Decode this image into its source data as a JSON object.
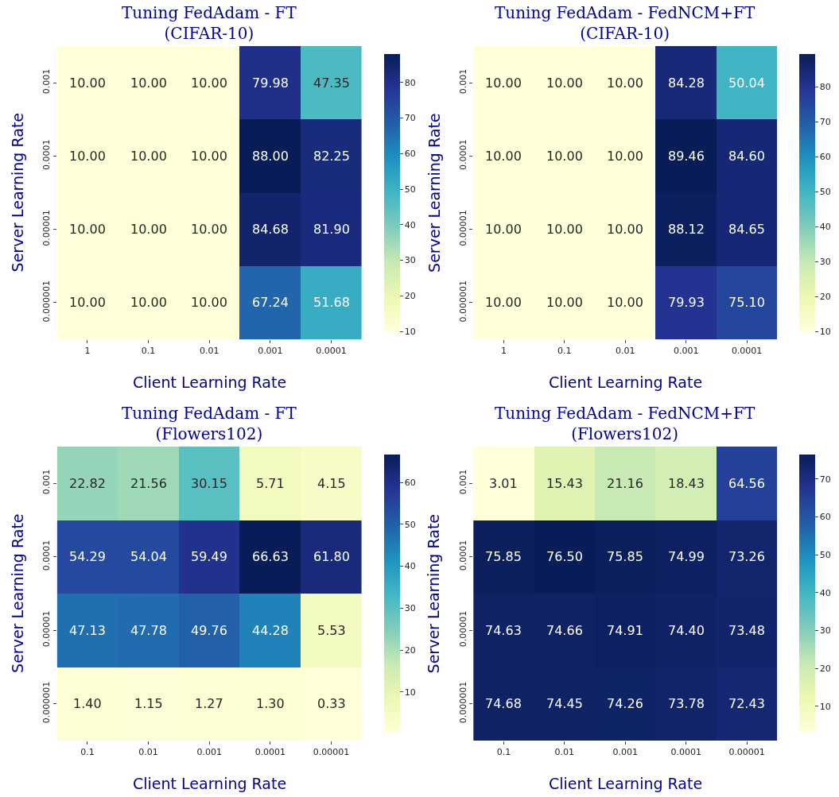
{
  "chart_data": [
    {
      "type": "heatmap",
      "title": "Tuning FedAdam - FT\n(CIFAR-10)",
      "xlabel": "Client Learning Rate",
      "ylabel": "Server Learning Rate",
      "categories": [
        "1",
        "0.1",
        "0.01",
        "0.001",
        "0.0001"
      ],
      "y_categories": [
        "0.001",
        "0.0001",
        "0.00001",
        "0.000001"
      ],
      "cells": [
        [
          10.0,
          10.0,
          10.0,
          79.98,
          47.35
        ],
        [
          10.0,
          10.0,
          10.0,
          88.0,
          82.25
        ],
        [
          10.0,
          10.0,
          10.0,
          84.68,
          81.9
        ],
        [
          10.0,
          10.0,
          10.0,
          67.24,
          51.68
        ]
      ],
      "cell_labels": [
        [
          "10.00",
          "10.00",
          "10.00",
          "79.98",
          "47.35"
        ],
        [
          "10.00",
          "10.00",
          "10.00",
          "88.00",
          "82.25"
        ],
        [
          "10.00",
          "10.00",
          "10.00",
          "84.68",
          "81.90"
        ],
        [
          "10.00",
          "10.00",
          "10.00",
          "67.24",
          "51.68"
        ]
      ],
      "clim": [
        10,
        88
      ],
      "cticks": [
        10,
        20,
        30,
        40,
        50,
        60,
        70,
        80
      ]
    },
    {
      "type": "heatmap",
      "title": "Tuning FedAdam - FedNCM+FT\n(CIFAR-10)",
      "xlabel": "Client Learning Rate",
      "ylabel": "Server Learning Rate",
      "categories": [
        "1",
        "0.1",
        "0.01",
        "0.001",
        "0.0001"
      ],
      "y_categories": [
        "0.001",
        "0.0001",
        "0.00001",
        "0.000001"
      ],
      "cells": [
        [
          10.0,
          10.0,
          10.0,
          84.28,
          50.04
        ],
        [
          10.0,
          10.0,
          10.0,
          89.46,
          84.6
        ],
        [
          10.0,
          10.0,
          10.0,
          88.12,
          84.65
        ],
        [
          10.0,
          10.0,
          10.0,
          79.93,
          75.1
        ]
      ],
      "cell_labels": [
        [
          "10.00",
          "10.00",
          "10.00",
          "84.28",
          "50.04"
        ],
        [
          "10.00",
          "10.00",
          "10.00",
          "89.46",
          "84.60"
        ],
        [
          "10.00",
          "10.00",
          "10.00",
          "88.12",
          "84.65"
        ],
        [
          "10.00",
          "10.00",
          "10.00",
          "79.93",
          "75.10"
        ]
      ],
      "clim": [
        10,
        89.46
      ],
      "cticks": [
        10,
        20,
        30,
        40,
        50,
        60,
        70,
        80
      ]
    },
    {
      "type": "heatmap",
      "title": "Tuning FedAdam - FT\n(Flowers102)",
      "xlabel": "Client Learning Rate",
      "ylabel": "Server Learning Rate",
      "categories": [
        "0.1",
        "0.01",
        "0.001",
        "0.0001",
        "0.00001"
      ],
      "y_categories": [
        "0.001",
        "0.0001",
        "0.00001",
        "0.000001"
      ],
      "cells": [
        [
          22.82,
          21.56,
          30.15,
          5.71,
          4.15
        ],
        [
          54.29,
          54.04,
          59.49,
          66.63,
          61.8
        ],
        [
          47.13,
          47.78,
          49.76,
          44.28,
          5.53
        ],
        [
          1.4,
          1.15,
          1.27,
          1.3,
          0.33
        ]
      ],
      "cell_labels": [
        [
          "22.82",
          "21.56",
          "30.15",
          "5.71",
          "4.15"
        ],
        [
          "54.29",
          "54.04",
          "59.49",
          "66.63",
          "61.80"
        ],
        [
          "47.13",
          "47.78",
          "49.76",
          "44.28",
          "5.53"
        ],
        [
          "1.40",
          "1.15",
          "1.27",
          "1.30",
          "0.33"
        ]
      ],
      "clim": [
        0.33,
        66.63
      ],
      "cticks": [
        10,
        20,
        30,
        40,
        50,
        60
      ]
    },
    {
      "type": "heatmap",
      "title": "Tuning FedAdam - FedNCM+FT\n(Flowers102)",
      "xlabel": "Client Learning Rate",
      "ylabel": "Server Learning Rate",
      "categories": [
        "0.1",
        "0.01",
        "0.001",
        "0.0001",
        "0.00001"
      ],
      "y_categories": [
        "0.001",
        "0.0001",
        "0.00001",
        "0.000001"
      ],
      "cells": [
        [
          3.01,
          15.43,
          21.16,
          18.43,
          64.56
        ],
        [
          75.85,
          76.5,
          75.85,
          74.99,
          73.26
        ],
        [
          74.63,
          74.66,
          74.91,
          74.4,
          73.48
        ],
        [
          74.68,
          74.45,
          74.26,
          73.78,
          72.43
        ]
      ],
      "cell_labels": [
        [
          "3.01",
          "15.43",
          "21.16",
          "18.43",
          "64.56"
        ],
        [
          "75.85",
          "76.50",
          "75.85",
          "74.99",
          "73.26"
        ],
        [
          "74.63",
          "74.66",
          "74.91",
          "74.40",
          "73.48"
        ],
        [
          "74.68",
          "74.45",
          "74.26",
          "73.78",
          "72.43"
        ]
      ],
      "clim": [
        3.01,
        76.5
      ],
      "cticks": [
        10,
        20,
        30,
        40,
        50,
        60,
        70
      ]
    }
  ]
}
